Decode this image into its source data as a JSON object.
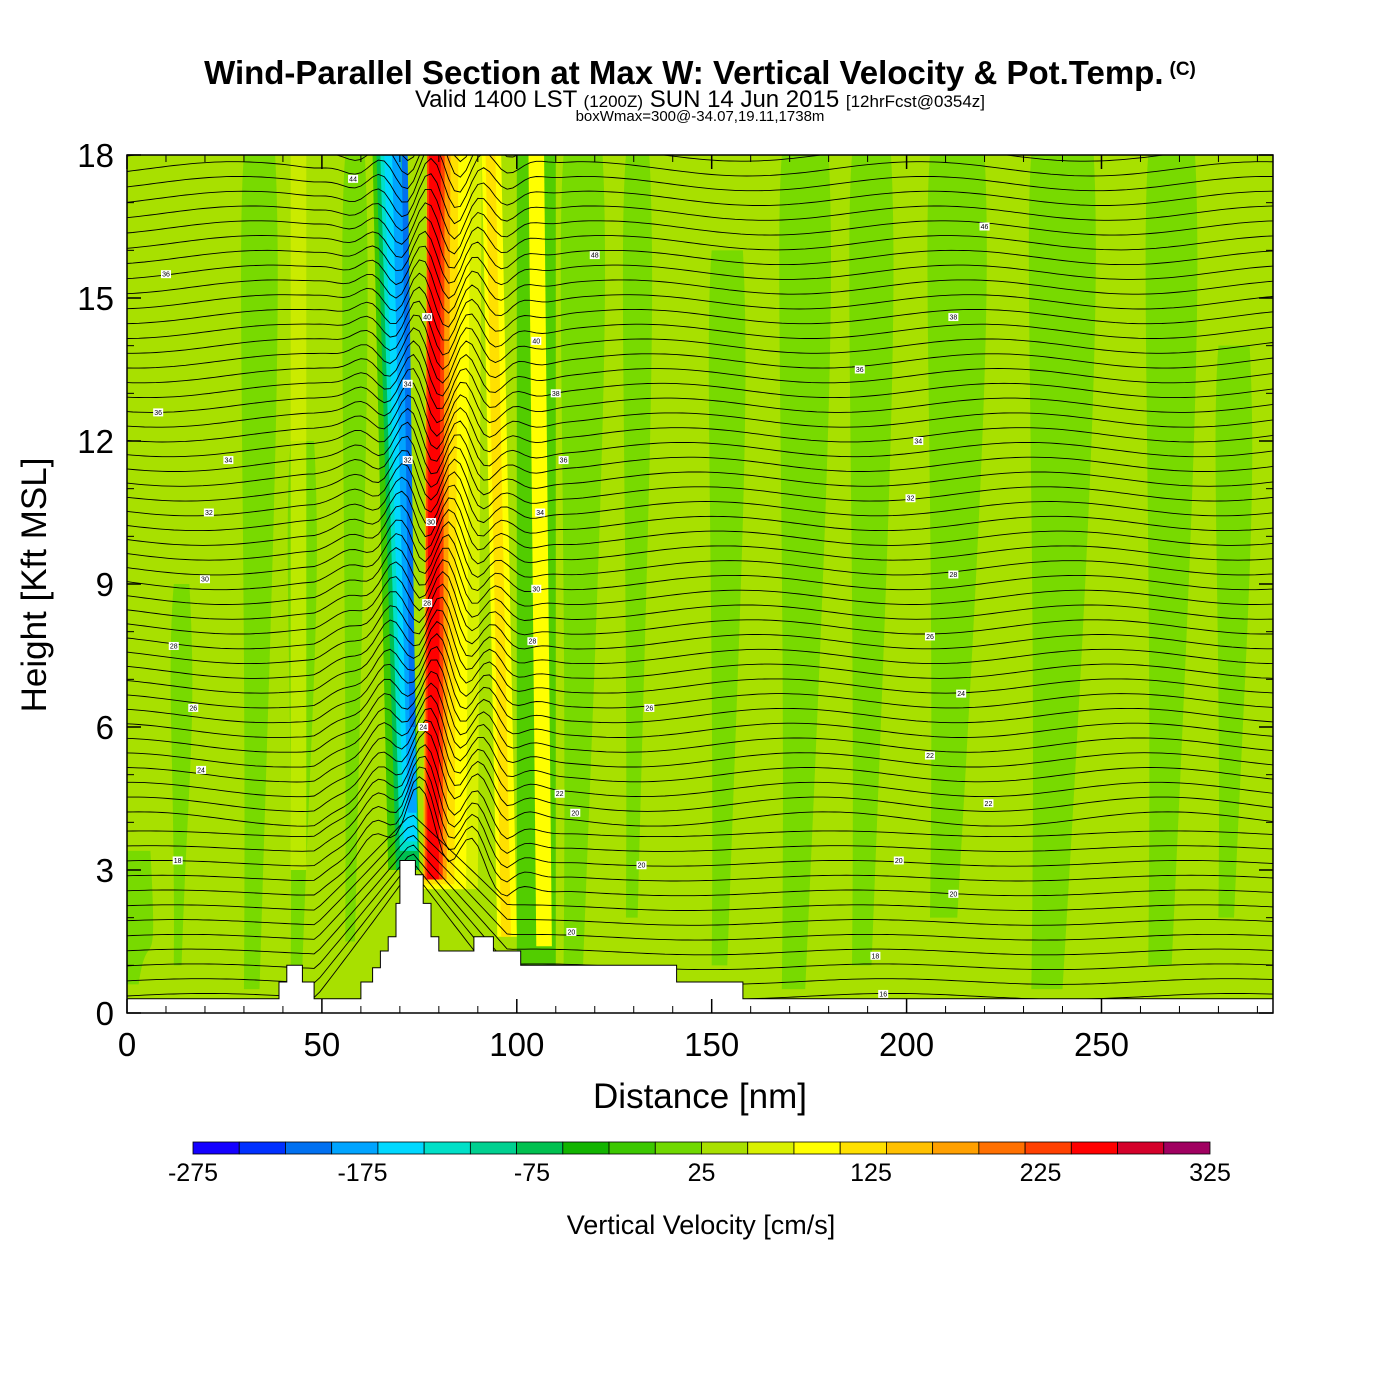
{
  "title": "Wind-Parallel Section at Max W: Vertical Velocity & Pot.Temp.",
  "copyright": "(C)",
  "subtitle": {
    "valid": "Valid 1400 LST",
    "utc": "(1200Z)",
    "date": "SUN 14 Jun 2015",
    "forecast": "[12hrFcst@0354z]"
  },
  "box_info": "boxWmax=300@-34.07,19.11,1738m",
  "colors": {
    "background_field": "#a8e000",
    "terrain": "#ffffff",
    "isentrope": "#000000"
  },
  "chart_data": {
    "type": "contour",
    "xlabel": "Distance [nm]",
    "ylabel": "Height [Kft MSL]",
    "xlim": [
      0,
      294
    ],
    "ylim": [
      0,
      18
    ],
    "xticks": [
      "0",
      "50",
      "100",
      "150",
      "200",
      "250"
    ],
    "yticks": [
      "0",
      "3",
      "6",
      "9",
      "12",
      "15",
      "18"
    ],
    "colorbar": {
      "label": "Vertical Velocity [cm/s]",
      "tick_labels": [
        "-275",
        "-175",
        "-75",
        "25",
        "125",
        "225",
        "325"
      ],
      "levels": [
        -275,
        325
      ],
      "colors": [
        "#1400ff",
        "#0030ff",
        "#0070f0",
        "#00a4ff",
        "#00d8ff",
        "#00e0c8",
        "#00d090",
        "#00c050",
        "#12b400",
        "#3cc800",
        "#70d800",
        "#a8e000",
        "#d8f000",
        "#ffff00",
        "#ffe000",
        "#ffc000",
        "#ffa000",
        "#ff7000",
        "#ff4000",
        "#ff0000",
        "#d4002a",
        "#a00060"
      ]
    },
    "terrain_profile": {
      "x": [
        0,
        39,
        39,
        41,
        41,
        45,
        45,
        48,
        48,
        60,
        60,
        63,
        63,
        65,
        65,
        67,
        67,
        69,
        69,
        70,
        70,
        74,
        74,
        76,
        76,
        78,
        78,
        80,
        80,
        89,
        89,
        94,
        94,
        97,
        97,
        101,
        101,
        103,
        103,
        141,
        141,
        158,
        158,
        294
      ],
      "y": [
        0.3,
        0.3,
        0.65,
        0.65,
        1.0,
        1.0,
        0.65,
        0.65,
        0.3,
        0.3,
        0.65,
        0.65,
        0.95,
        0.95,
        1.3,
        1.3,
        1.6,
        1.6,
        2.3,
        2.3,
        3.2,
        3.2,
        2.9,
        2.9,
        2.3,
        2.3,
        1.6,
        1.6,
        1.3,
        1.3,
        1.6,
        1.6,
        1.3,
        1.3,
        1.3,
        1.3,
        1.0,
        1.0,
        1.0,
        1.0,
        0.65,
        0.65,
        0.3,
        0.3
      ]
    },
    "updraft": {
      "x_core": 77,
      "w_max_cms": 300
    },
    "downdraft": {
      "x_core": 73,
      "w_min_cms": -275
    },
    "isentrope_labels": [
      "44",
      "46",
      "48",
      "40",
      "38",
      "36",
      "34",
      "32",
      "30",
      "28",
      "26",
      "24",
      "22",
      "20",
      "18",
      "16"
    ]
  }
}
